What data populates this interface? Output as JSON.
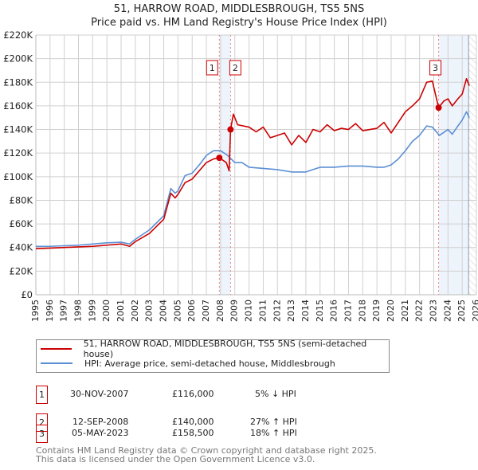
{
  "chart_data": {
    "type": "line",
    "title": "51, HARROW ROAD, MIDDLESBROUGH, TS5 5NS",
    "subtitle": "Price paid vs. HM Land Registry's House Price Index (HPI)",
    "xlim": [
      1995,
      2026
    ],
    "ylim": [
      0,
      220000
    ],
    "y_ticks": [
      0,
      20000,
      40000,
      60000,
      80000,
      100000,
      120000,
      140000,
      160000,
      180000,
      200000,
      220000
    ],
    "y_tick_labels": [
      "£0",
      "£20K",
      "£40K",
      "£60K",
      "£80K",
      "£100K",
      "£120K",
      "£140K",
      "£160K",
      "£180K",
      "£200K",
      "£220K"
    ],
    "x_ticks": [
      1995,
      1996,
      1997,
      1998,
      1999,
      2000,
      2001,
      2002,
      2003,
      2004,
      2005,
      2006,
      2007,
      2008,
      2009,
      2010,
      2011,
      2012,
      2013,
      2014,
      2015,
      2016,
      2017,
      2018,
      2019,
      2020,
      2021,
      2022,
      2023,
      2024,
      2025,
      2026
    ],
    "grid": true,
    "series": [
      {
        "name": "51, HARROW ROAD, MIDDLESBROUGH, TS5 5NS (semi-detached house)",
        "color": "#cc0000",
        "x": [
          1995,
          1996,
          1997,
          1998,
          1999,
          2000,
          2001,
          2001.6,
          2002,
          2003,
          2004,
          2004.5,
          2004.8,
          2005,
          2005.5,
          2006,
          2006.5,
          2007,
          2007.5,
          2007.91,
          2008.4,
          2008.6,
          2008.7,
          2008.9,
          2009.2,
          2010,
          2010.5,
          2011,
          2011.5,
          2012,
          2012.5,
          2013,
          2013.5,
          2014,
          2014.5,
          2015,
          2015.5,
          2016,
          2016.5,
          2017,
          2017.5,
          2018,
          2018.5,
          2019,
          2019.5,
          2020,
          2020.5,
          2021,
          2021.5,
          2022,
          2022.5,
          2022.9,
          2023.34,
          2023.7,
          2024,
          2024.3,
          2024.7,
          2025,
          2025.3,
          2025.5
        ],
        "y": [
          39000,
          39500,
          40000,
          40500,
          41000,
          42000,
          43000,
          41000,
          45000,
          52000,
          64000,
          86000,
          82000,
          85000,
          95000,
          98000,
          105000,
          112000,
          115000,
          116000,
          112000,
          105000,
          140000,
          153000,
          144000,
          142000,
          138000,
          142000,
          133000,
          135000,
          137000,
          127000,
          135000,
          129000,
          140000,
          138000,
          144000,
          139000,
          141000,
          140000,
          145000,
          139000,
          140000,
          141000,
          146000,
          137000,
          146000,
          155000,
          160000,
          166000,
          180000,
          181000,
          158500,
          164000,
          166000,
          160000,
          166000,
          170000,
          183000,
          177000
        ]
      },
      {
        "name": "HPI: Average price, semi-detached house, Middlesbrough",
        "color": "#5b8fd4",
        "x": [
          1995,
          1996,
          1997,
          1998,
          1999,
          2000,
          2001,
          2001.6,
          2002,
          2003,
          2004,
          2004.5,
          2004.8,
          2005,
          2005.5,
          2006,
          2006.5,
          2007,
          2007.5,
          2008,
          2008.5,
          2009,
          2009.5,
          2010,
          2011,
          2012,
          2013,
          2014,
          2014.5,
          2015,
          2016,
          2017,
          2018,
          2019,
          2019.5,
          2020,
          2020.5,
          2021,
          2021.5,
          2022,
          2022.5,
          2022.9,
          2023.4,
          2024,
          2024.3,
          2024.7,
          2025,
          2025.3,
          2025.5
        ],
        "y": [
          41000,
          41000,
          41500,
          42000,
          43000,
          44000,
          44500,
          43000,
          47000,
          55000,
          67000,
          90000,
          86000,
          88000,
          101000,
          103000,
          110000,
          118000,
          122000,
          122000,
          118000,
          112000,
          112000,
          108000,
          107000,
          106000,
          104000,
          104000,
          106000,
          108000,
          108000,
          109000,
          109000,
          108000,
          108000,
          110000,
          115000,
          122000,
          130000,
          135000,
          143000,
          142000,
          135000,
          140000,
          136000,
          143000,
          148000,
          155000,
          150000
        ]
      }
    ],
    "sales": [
      {
        "id": "1",
        "date": "30-NOV-2007",
        "x": 2007.91,
        "price": 116000,
        "price_label": "£116,000",
        "hpi": "5% ↓ HPI"
      },
      {
        "id": "2",
        "date": "12-SEP-2008",
        "x": 2008.7,
        "price": 140000,
        "price_label": "£140,000",
        "hpi": "27% ↑ HPI"
      },
      {
        "id": "3",
        "date": "05-MAY-2023",
        "x": 2023.34,
        "price": 158500,
        "price_label": "£158,500",
        "hpi": "18% ↑ HPI"
      }
    ],
    "shaded": [
      [
        2007.91,
        2008.7
      ],
      [
        2023.34,
        2025.45
      ]
    ],
    "hatched_from": 2025.45
  },
  "footer": {
    "line1": "Contains HM Land Registry data © Crown copyright and database right 2025.",
    "line2": "This data is licensed under the Open Government Licence v3.0."
  }
}
